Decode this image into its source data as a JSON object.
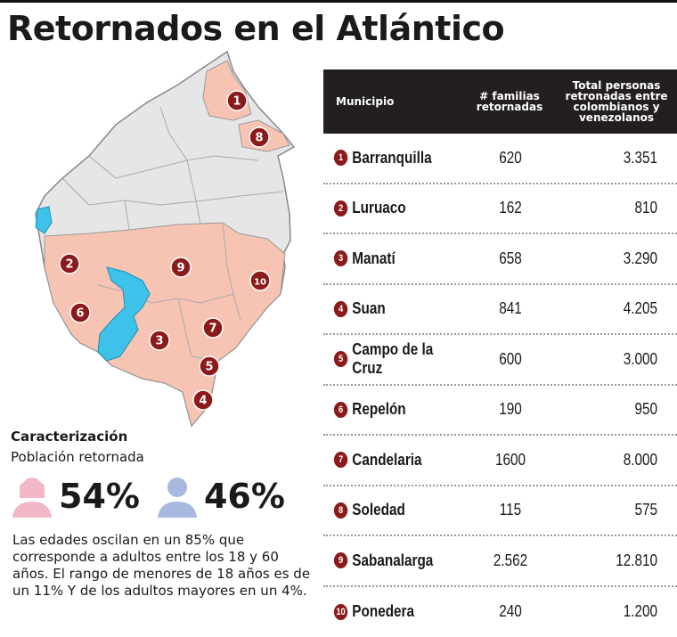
{
  "title": "Retornados en el Atlántico",
  "table": {
    "headers": {
      "municipio": "Municipio",
      "familias": "# familias retornadas",
      "total": "Total personas retronadas entre colombianos y venezolanos"
    },
    "rows": [
      {
        "n": "1",
        "municipio": "Barranquilla",
        "familias": "620",
        "total": "3.351"
      },
      {
        "n": "2",
        "municipio": "Luruaco",
        "familias": "162",
        "total": "810"
      },
      {
        "n": "3",
        "municipio": "Manatí",
        "familias": "658",
        "total": "3.290"
      },
      {
        "n": "4",
        "municipio": "Suan",
        "familias": "841",
        "total": "4.205"
      },
      {
        "n": "5",
        "municipio": "Campo de la Cruz",
        "familias": "600",
        "total": "3.000"
      },
      {
        "n": "6",
        "municipio": "Repelón",
        "familias": "190",
        "total": "950"
      },
      {
        "n": "7",
        "municipio": "Candelaria",
        "familias": "1600",
        "total": "8.000"
      },
      {
        "n": "8",
        "municipio": "Soledad",
        "familias": "115",
        "total": "575"
      },
      {
        "n": "9",
        "municipio": "Sabanalarga",
        "familias": "2.562",
        "total": "12.810"
      },
      {
        "n": "10",
        "municipio": "Ponedera",
        "familias": "240",
        "total": "1.200"
      }
    ]
  },
  "map": {
    "markers": [
      "1",
      "8",
      "2",
      "9",
      "10",
      "6",
      "3",
      "7",
      "5",
      "4"
    ]
  },
  "caracterizacion": {
    "title": "Caracterización",
    "subtitle": "Población retornada",
    "women_pct": "54%",
    "men_pct": "46%",
    "text": "Las edades oscilan en un 85% que corresponde a adultos entre los 18 y 60 años. El rango de menores de 18 años es de un 11% Y  de los adultos mayores en un 4%."
  },
  "colors": {
    "highlight": "#f7c4b4",
    "base": "#e8e8e8",
    "marker": "#8b1a1a",
    "water": "#3fc2ea",
    "women": "#f2b8c8",
    "men": "#a9b8e0"
  }
}
